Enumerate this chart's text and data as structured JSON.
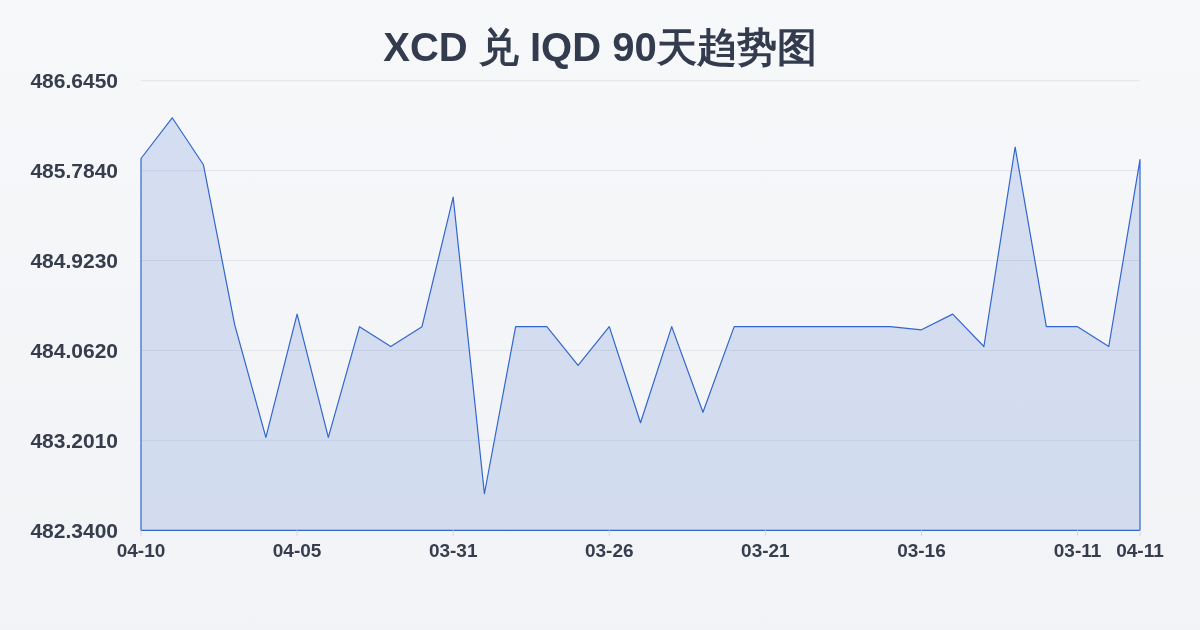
{
  "chart_data": {
    "type": "area",
    "title": "XCD 兑 IQD 90天趋势图",
    "categories": [
      "04-10",
      null,
      null,
      null,
      null,
      "04-05",
      null,
      null,
      null,
      null,
      "03-31",
      null,
      null,
      null,
      null,
      "03-26",
      null,
      null,
      null,
      null,
      "03-21",
      null,
      null,
      null,
      null,
      "03-16",
      null,
      null,
      null,
      null,
      "03-11",
      null,
      "04-11"
    ],
    "values": [
      485.9,
      486.29,
      485.84,
      484.31,
      483.23,
      484.41,
      483.23,
      484.29,
      484.1,
      484.29,
      485.53,
      482.69,
      484.29,
      484.29,
      483.92,
      484.29,
      483.37,
      484.29,
      483.47,
      484.29,
      484.29,
      484.29,
      484.29,
      484.29,
      484.29,
      484.26,
      484.41,
      484.1,
      486.01,
      484.29,
      484.29,
      484.1,
      485.89
    ],
    "color": "#3366cc",
    "ylim": [
      482.34,
      486.645
    ],
    "yticks": [
      {
        "value": 482.34,
        "label": "482.3400"
      },
      {
        "value": 483.201,
        "label": "483.2010"
      },
      {
        "value": 484.062,
        "label": "484.0620"
      },
      {
        "value": 484.923,
        "label": "484.9230"
      },
      {
        "value": 485.784,
        "label": "485.7840"
      },
      {
        "value": 486.645,
        "label": "486.6450"
      }
    ],
    "grid": "y"
  }
}
